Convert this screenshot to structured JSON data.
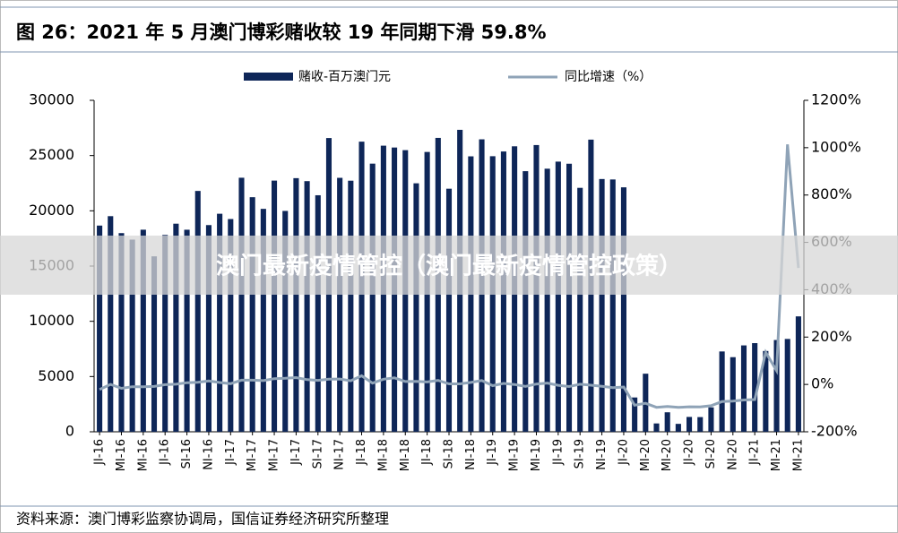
{
  "chart_data": {
    "type": "bar_line",
    "title": "图 26：2021 年 5 月澳门博彩赌收较 19 年同期下滑 59.8%",
    "source": "资料来源：澳门博彩监察协调局，国信证券经济研究所整理",
    "categories": [
      "JI-16",
      null,
      "MI-16",
      null,
      "MI-16",
      null,
      "JI-16",
      null,
      "SI-16",
      null,
      "NI-16",
      null,
      "JI-17",
      null,
      "MI-17",
      null,
      "MI-17",
      null,
      "JI-17",
      null,
      "SI-17",
      null,
      "NI-17",
      null,
      "JI-18",
      null,
      "MI-18",
      null,
      "MI-18",
      null,
      "JI-18",
      null,
      "SI-18",
      null,
      "NI-18",
      null,
      "JI-19",
      null,
      "MI-19",
      null,
      "MI-19",
      null,
      "JI-19",
      null,
      "SI-19",
      null,
      "NI-19",
      null,
      "JI-20",
      null,
      "MI-20",
      null,
      "MI-20",
      null,
      "JI-20",
      null,
      "SI-20",
      null,
      "NI-20",
      null,
      "JI-21",
      null,
      "MI-21",
      null,
      "MI-21"
    ],
    "series": [
      {
        "name": "赌收-百万澳门元",
        "color": "#0e2658",
        "values": [
          18663,
          19516,
          17981,
          17394,
          18290,
          15881,
          17815,
          18835,
          18288,
          21799,
          18708,
          19734,
          19255,
          22994,
          21232,
          20176,
          22734,
          19990,
          22956,
          22686,
          21408,
          26587,
          22985,
          22726,
          26260,
          24270,
          25897,
          25728,
          25491,
          22490,
          25327,
          26600,
          22000,
          27330,
          24930,
          26470,
          24942,
          25370,
          25840,
          23588,
          25952,
          23812,
          24453,
          24262,
          22079,
          26443,
          22877,
          22837,
          22126,
          3104,
          5257,
          754,
          1764,
          716,
          1344,
          1330,
          2211,
          7270,
          6753,
          7818,
          8024,
          7312,
          8306,
          8402,
          10445
        ]
      },
      {
        "name": "同比增速（%）",
        "color": "#8fa3b7",
        "axis": "y2",
        "values": [
          -21.4,
          0.1,
          -16.3,
          -9.5,
          -9.6,
          -8.5,
          -1.0,
          1.1,
          7.4,
          8.8,
          14.4,
          8.0,
          3.1,
          17.8,
          18.1,
          16.0,
          24.3,
          25.9,
          28.9,
          20.4,
          17.1,
          22.0,
          22.9,
          15.2,
          36.4,
          5.5,
          22.0,
          27.6,
          12.1,
          12.5,
          10.3,
          17.1,
          2.5,
          2.6,
          8.5,
          16.6,
          -5.0,
          4.4,
          -0.2,
          -8.3,
          1.8,
          5.9,
          -3.5,
          -8.8,
          0.9,
          -3.3,
          -8.3,
          -13.7,
          -11.3,
          -87.8,
          -79.7,
          -96.8,
          -93.2,
          -97.0,
          -94.5,
          -95.0,
          -90.0,
          -72.5,
          -70.5,
          -65.8,
          -63.7,
          135.6,
          58.0,
          1014,
          492
        ]
      }
    ],
    "ylim": [
      0,
      30000
    ],
    "yticks": [
      0,
      5000,
      10000,
      15000,
      20000,
      25000,
      30000
    ],
    "y2lim": [
      -200,
      1200
    ],
    "y2ticks": [
      {
        "value": -200,
        "label": "-200%"
      },
      {
        "value": 0,
        "label": "0%"
      },
      {
        "value": 200,
        "label": "200%"
      },
      {
        "value": 400,
        "label": "400%"
      },
      {
        "value": 600,
        "label": "600%"
      },
      {
        "value": 800,
        "label": "800%"
      },
      {
        "value": 1000,
        "label": "1000%"
      },
      {
        "value": 1200,
        "label": "1200%"
      }
    ],
    "legend": "top"
  },
  "overlay": "澳门最新疫情管控（澳门最新疫情管控政策）"
}
